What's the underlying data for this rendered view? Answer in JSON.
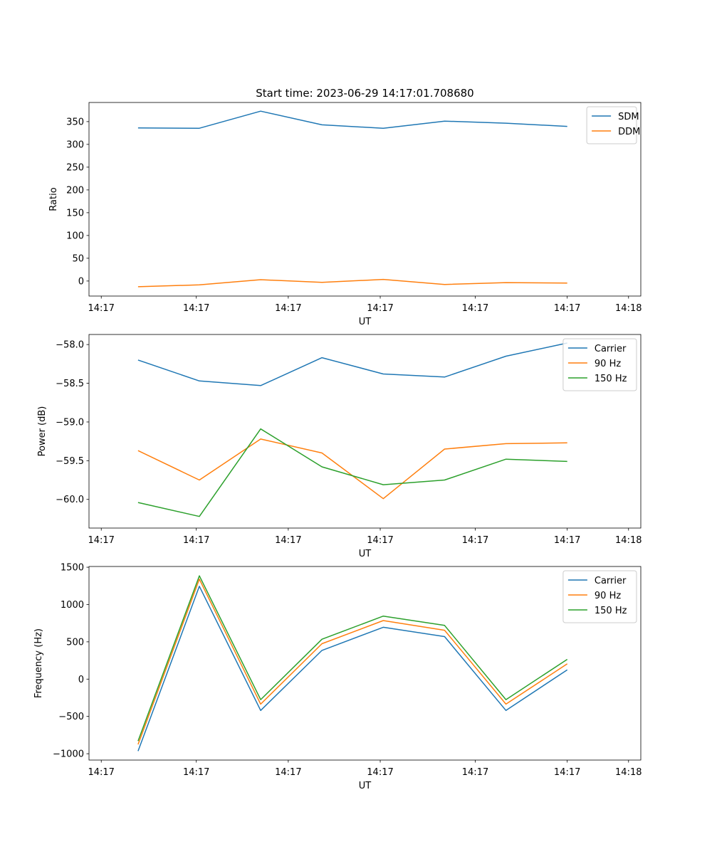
{
  "figure": {
    "suptitle": "Start time: 2023-06-29 14:17:01.708680"
  },
  "chart_data": [
    {
      "type": "line",
      "title": "Start time: 2023-06-29 14:17:01.708680",
      "xlabel": "UT",
      "ylabel": "Ratio",
      "x": [
        1,
        2,
        3,
        4,
        5,
        6,
        7,
        8
      ],
      "xlim": [
        0.2,
        9.2
      ],
      "x_ticks": [
        0.4,
        1.95,
        3.45,
        4.95,
        6.5,
        8.0,
        9.0
      ],
      "x_tick_labels": [
        "14:17",
        "14:17",
        "14:17",
        "14:17",
        "14:17",
        "14:17",
        "14:18"
      ],
      "ylim": [
        -33,
        392
      ],
      "y_ticks": [
        0,
        50,
        100,
        150,
        200,
        250,
        300,
        350
      ],
      "y_tick_labels": [
        "0",
        "50",
        "100",
        "150",
        "200",
        "250",
        "300",
        "350"
      ],
      "legend_position": "top-right",
      "grid": false,
      "series": [
        {
          "name": "SDM",
          "color": "#1f77b4",
          "values": [
            336,
            335.5,
            373,
            343,
            335.5,
            351,
            346.5,
            339.5
          ]
        },
        {
          "name": "DDM",
          "color": "#ff7f0e",
          "values": [
            -12.5,
            -8.5,
            3,
            -3,
            3.5,
            -7.5,
            -3.5,
            -4.5
          ]
        }
      ]
    },
    {
      "type": "line",
      "title": "",
      "xlabel": "UT",
      "ylabel": "Power (dB)",
      "x": [
        1,
        2,
        3,
        4,
        5,
        6,
        7,
        8
      ],
      "xlim": [
        0.2,
        9.2
      ],
      "x_ticks": [
        0.4,
        1.95,
        3.45,
        4.95,
        6.5,
        8.0,
        9.0
      ],
      "x_tick_labels": [
        "14:17",
        "14:17",
        "14:17",
        "14:17",
        "14:17",
        "14:17",
        "14:18"
      ],
      "ylim": [
        -60.37,
        -57.87
      ],
      "y_ticks": [
        -60.0,
        -59.5,
        -59.0,
        -58.5,
        -58.0
      ],
      "y_tick_labels": [
        "−60.0",
        "−59.5",
        "−59.0",
        "−58.5",
        "−58.0"
      ],
      "legend_position": "top-right",
      "grid": false,
      "series": [
        {
          "name": "Carrier",
          "color": "#1f77b4",
          "values": [
            -58.2,
            -58.47,
            -58.53,
            -58.17,
            -58.38,
            -58.42,
            -58.15,
            -57.98
          ]
        },
        {
          "name": "90 Hz",
          "color": "#ff7f0e",
          "values": [
            -59.37,
            -59.75,
            -59.22,
            -59.4,
            -59.99,
            -59.35,
            -59.28,
            -59.27
          ]
        },
        {
          "name": "150 Hz",
          "color": "#2ca02c",
          "values": [
            -60.04,
            -60.22,
            -59.09,
            -59.58,
            -59.81,
            -59.75,
            -59.48,
            -59.51
          ]
        }
      ]
    },
    {
      "type": "line",
      "title": "",
      "xlabel": "UT",
      "ylabel": "Frequency (Hz)",
      "x": [
        1,
        2,
        3,
        4,
        5,
        6,
        7,
        8
      ],
      "xlim": [
        0.2,
        9.2
      ],
      "x_ticks": [
        0.4,
        1.95,
        3.45,
        4.95,
        6.5,
        8.0,
        9.0
      ],
      "x_tick_labels": [
        "14:17",
        "14:17",
        "14:17",
        "14:17",
        "14:17",
        "14:17",
        "14:18"
      ],
      "ylim": [
        -1085,
        1510
      ],
      "y_ticks": [
        -1000,
        -500,
        0,
        500,
        1000,
        1500
      ],
      "y_tick_labels": [
        "−1000",
        "−500",
        "0",
        "500",
        "1000",
        "1500"
      ],
      "legend_position": "top-right",
      "grid": false,
      "series": [
        {
          "name": "Carrier",
          "color": "#1f77b4",
          "values": [
            -965,
            1245,
            -420,
            385,
            695,
            570,
            -420,
            125
          ]
        },
        {
          "name": "90 Hz",
          "color": "#ff7f0e",
          "values": [
            -875,
            1340,
            -335,
            475,
            785,
            655,
            -335,
            205
          ]
        },
        {
          "name": "150 Hz",
          "color": "#2ca02c",
          "values": [
            -830,
            1385,
            -275,
            535,
            845,
            720,
            -275,
            265
          ]
        }
      ]
    }
  ]
}
